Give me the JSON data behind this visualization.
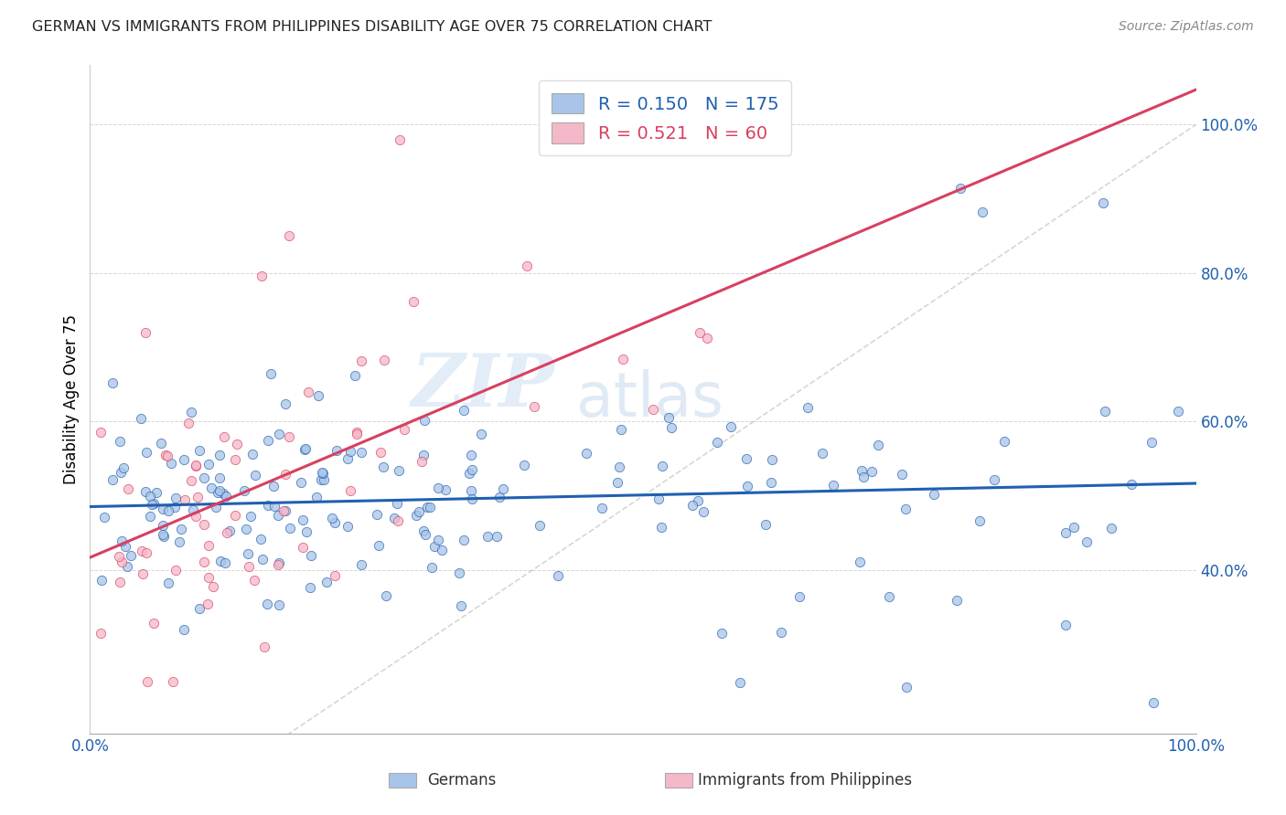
{
  "title": "GERMAN VS IMMIGRANTS FROM PHILIPPINES DISABILITY AGE OVER 75 CORRELATION CHART",
  "source": "Source: ZipAtlas.com",
  "ylabel": "Disability Age Over 75",
  "legend_label1": "Germans",
  "legend_label2": "Immigrants from Philippines",
  "r1": 0.15,
  "n1": 175,
  "r2": 0.521,
  "n2": 60,
  "color1": "#a8c4e8",
  "color2": "#f5b8c8",
  "line_color1": "#2060b0",
  "line_color2": "#d84060",
  "diagonal_color": "#cccccc",
  "watermark_zip": "ZIP",
  "watermark_atlas": "atlas",
  "xmin": 0.0,
  "xmax": 1.0,
  "ymin": 0.18,
  "ymax": 1.08,
  "yticks": [
    0.4,
    0.6,
    0.8,
    1.0
  ],
  "ytick_labels": [
    "40.0%",
    "60.0%",
    "80.0%",
    "100.0%"
  ],
  "background_color": "#ffffff",
  "seed1": 42,
  "seed2": 99
}
